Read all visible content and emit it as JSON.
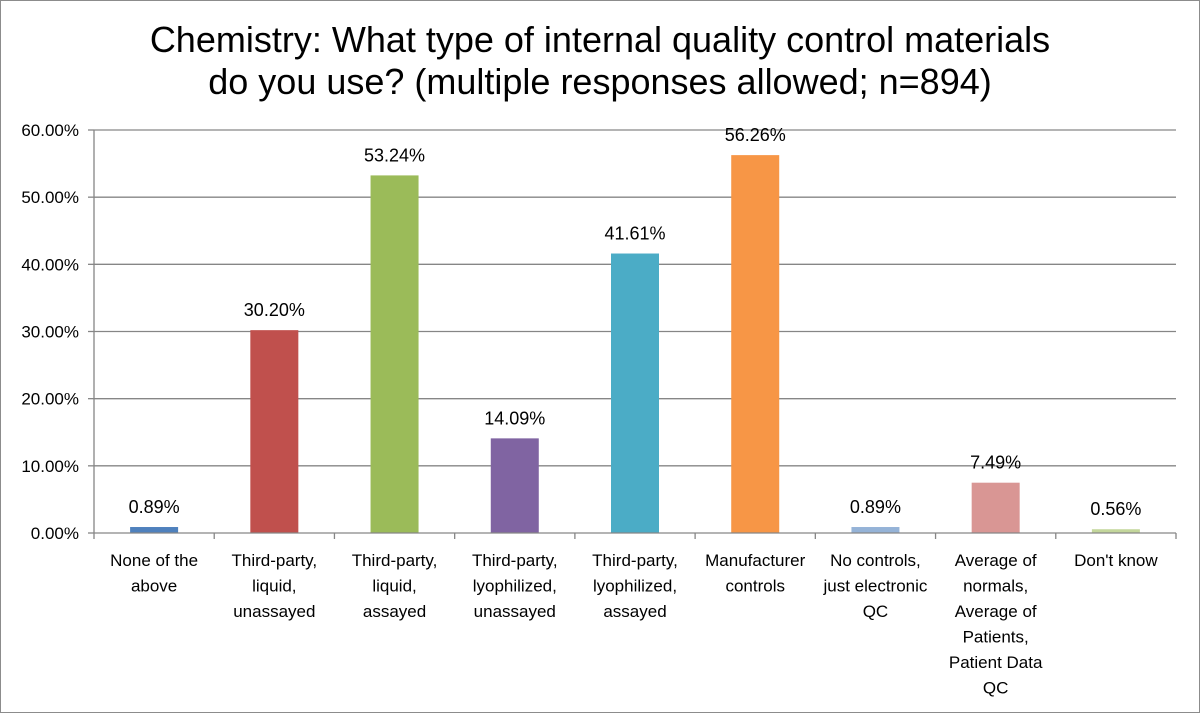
{
  "chart_data": {
    "type": "bar",
    "title_lines": [
      "Chemistry: What type of internal quality control materials",
      "do you use? (multiple responses allowed; n=894)"
    ],
    "categories": [
      [
        "None of the",
        "above"
      ],
      [
        "Third-party,",
        "liquid,",
        "unassayed"
      ],
      [
        "Third-party,",
        "liquid,",
        "assayed"
      ],
      [
        "Third-party,",
        "lyophilized,",
        "unassayed"
      ],
      [
        "Third-party,",
        "lyophilized,",
        "assayed"
      ],
      [
        "Manufacturer",
        "controls"
      ],
      [
        "No controls,",
        "just electronic",
        "QC"
      ],
      [
        "Average of",
        "normals,",
        "Average of",
        "Patients,",
        "Patient Data",
        "QC"
      ],
      [
        "Don't know"
      ]
    ],
    "values": [
      0.89,
      30.2,
      53.24,
      14.09,
      41.61,
      56.26,
      0.89,
      7.49,
      0.56
    ],
    "value_labels": [
      "0.89%",
      "30.20%",
      "53.24%",
      "14.09%",
      "41.61%",
      "56.26%",
      "0.89%",
      "7.49%",
      "0.56%"
    ],
    "colors": [
      "#4f81bd",
      "#c0504d",
      "#9bbb59",
      "#8064a2",
      "#4bacc6",
      "#f79646",
      "#95b3d7",
      "#d99694",
      "#c3d69b"
    ],
    "ylim": [
      0,
      60
    ],
    "y_ticks": [
      0,
      10,
      20,
      30,
      40,
      50,
      60
    ],
    "y_tick_labels": [
      "0.00%",
      "10.00%",
      "20.00%",
      "30.00%",
      "40.00%",
      "50.00%",
      "60.00%"
    ],
    "grid": true,
    "legend": "none",
    "xlabel": "",
    "ylabel": ""
  }
}
